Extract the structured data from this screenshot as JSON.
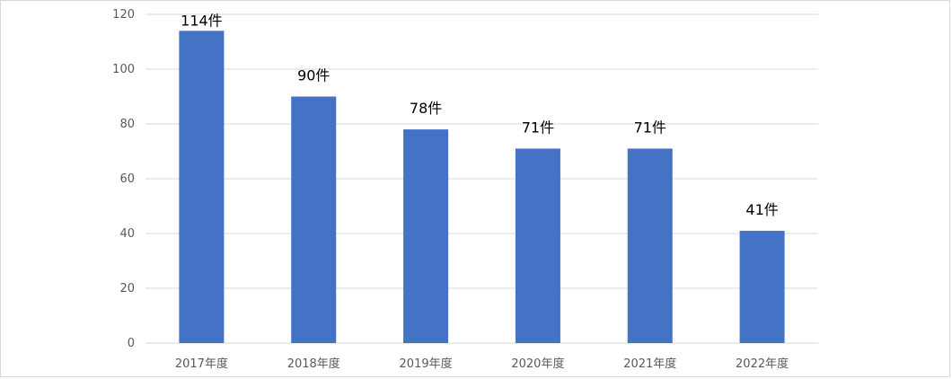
{
  "chart_data": {
    "type": "bar",
    "categories": [
      "2017年度",
      "2018年度",
      "2019年度",
      "2020年度",
      "2021年度",
      "2022年度"
    ],
    "values": [
      114,
      90,
      78,
      71,
      71,
      41
    ],
    "data_labels": [
      "114件",
      "90件",
      "78件",
      "71件",
      "71件",
      "41件"
    ],
    "yticks": [
      "0",
      "20",
      "40",
      "60",
      "80",
      "100",
      "120"
    ],
    "ylim": [
      0,
      120
    ],
    "ytick_values": [
      0,
      20,
      40,
      60,
      80,
      100,
      120
    ],
    "grid": true,
    "colors": {
      "bar": "#4472c4",
      "grid": "#d9d9d9",
      "axis_text": "#595959"
    }
  }
}
